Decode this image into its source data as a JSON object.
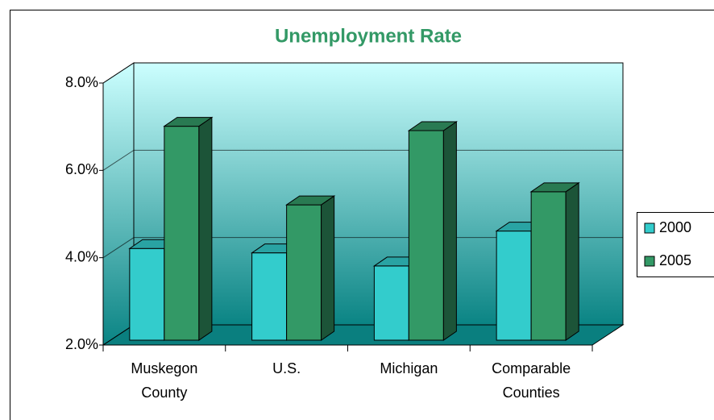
{
  "chart_data": {
    "type": "bar",
    "title": "Unemployment Rate",
    "categories": [
      "Muskegon County",
      "U.S.",
      "Michigan",
      "Comparable Counties"
    ],
    "series": [
      {
        "name": "2000",
        "color": "#33cccc",
        "values": [
          4.1,
          4.0,
          3.7,
          4.5
        ]
      },
      {
        "name": "2005",
        "color": "#339966",
        "values": [
          6.9,
          5.1,
          6.8,
          5.4
        ]
      }
    ],
    "ylim": [
      2,
      8
    ],
    "yticks": [
      {
        "value": 2,
        "label": "2.0%"
      },
      {
        "value": 4,
        "label": "4.0%"
      },
      {
        "value": 6,
        "label": "6.0%"
      },
      {
        "value": 8,
        "label": "8.0%"
      }
    ],
    "grid": true,
    "legend": "right"
  }
}
